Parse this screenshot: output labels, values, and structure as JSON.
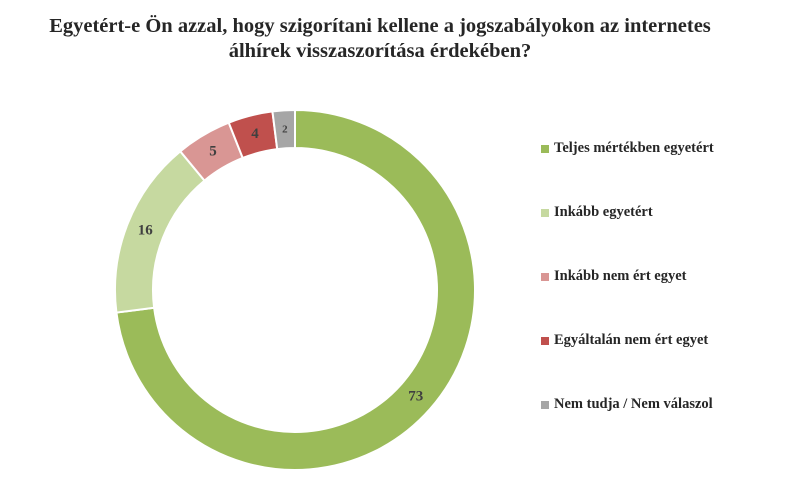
{
  "chart_data": {
    "type": "pie",
    "variant": "donut",
    "title": "Egyetért-e Ön azzal, hogy szigorítani kellene a jogszabályokon az internetes álhírek visszaszorítása érdekében?",
    "title_lines": [
      "Egyetért-e Ön azzal, hogy szigorítani kellene a jogszabályokon az internetes",
      "álhírek visszaszorítása érdekében?"
    ],
    "categories": [
      "Teljes mértékben egyetért",
      "Inkább egyetért",
      "Inkább nem ért egyet",
      "Egyáltalán nem ért egyet",
      "Nem tudja / Nem válaszol"
    ],
    "values": [
      73,
      16,
      5,
      4,
      2
    ],
    "value_labels": [
      "73",
      "16",
      "5",
      "4",
      "2"
    ],
    "colors": [
      "#9bbb59",
      "#c6d9a0",
      "#d99694",
      "#c0504d",
      "#a6a6a6"
    ],
    "legend_position": "right"
  }
}
